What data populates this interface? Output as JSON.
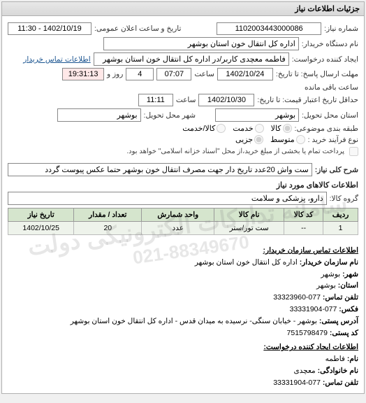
{
  "panel_title": "جزئیات اطلاعات نیاز",
  "need_number_label": "شماره نیاز:",
  "need_number": "1102003443000086",
  "announce_label": "تاریخ و ساعت اعلان عمومی:",
  "announce_value": "1402/10/19 - 11:30",
  "buyer_org_label": "نام دستگاه خریدار:",
  "buyer_org": "اداره کل انتقال خون استان بوشهر",
  "requester_label": "ایجاد کننده درخواست:",
  "requester": "فاطمه معچدی کاربر/در اداره کل انتقال خون استان بوشهر",
  "buyer_contact_link": "اطلاعات تماس خریدار",
  "deadline_label": "مهلت ارسال پاسخ: تا تاریخ:",
  "deadline_date": "1402/10/24",
  "time_label": "ساعت",
  "deadline_time": "07:07",
  "days_label": "روز و",
  "days_remaining": "4",
  "hours_remaining": "19:31:13",
  "hours_remaining_label": "ساعت باقی مانده",
  "validity_label": "حداقل تاریخ اعتبار قیمت: تا تاریخ:",
  "validity_date": "1402/10/30",
  "validity_time": "11:11",
  "province_label": "استان محل تحویل:",
  "province": "بوشهر",
  "city_label": "شهر محل تحویل:",
  "city": "بوشهر",
  "budget_label": "طبقه بندی موضوعی:",
  "radio_goods": "کالا",
  "radio_service": "خدمت",
  "radio_both": "کالا/خدمت",
  "purchase_type_label": "نوع فرآیند خرید :",
  "radio_medium": "متوسط",
  "radio_partial": "جزیی",
  "check_total": "پرداخت تمام یا بخشی از مبلغ خرید،از محل \"اسناد خزانه اسلامی\" خواهد بود.",
  "desc_label": "شرح کلی نیاز:",
  "desc_value": "ست واش 20عدد تاریخ دار جهت مصرف انتقال خون بوشهر حتما عکس پیوست گردد",
  "items_section": "اطلاعات کالاهای مورد نیاز",
  "group_label": "گروه کالا:",
  "group_value": "دارو، پزشکی و سلامت",
  "table": {
    "headers": [
      "ردیف",
      "کد کالا",
      "نام کالا",
      "واحد شمارش",
      "تعداد / مقدار",
      "تاریخ نیاز"
    ],
    "rows": [
      [
        "1",
        "--",
        "ست تور/ستر",
        "عدد",
        "20",
        "1402/10/25"
      ]
    ]
  },
  "contact": {
    "buyer_title": "اطلاعات تماس سازمان خریدار:",
    "org_label": "نام سازمان خریدار:",
    "org": "اداره کل انتقال خون استان بوشهر",
    "city_label": "شهر:",
    "city": "بوشهر",
    "province_label": "استان:",
    "province": "بوشهر",
    "phone_label": "تلفن تماس:",
    "phone": "077-33323960",
    "fax_label": "فکس:",
    "fax": "077-33331904",
    "address_label": "آدرس پستی:",
    "address": "بوشهر - خیابان سنگی- نرسیده به میدان قدس - اداره کل انتقال خون استان بوشهر",
    "postal_label": "کد پستی:",
    "postal": "7515798479",
    "requester_title": "اطلاعات ایجاد کننده درخواست:",
    "name_label": "نام:",
    "name": "فاطمه",
    "lastname_label": "نام خانوادگی:",
    "lastname": "معچدی",
    "req_phone_label": "تلفن تماس:",
    "req_phone": "077-33331904"
  },
  "watermark1": "سامانه تدارکات الکترونیکی دولت",
  "watermark2": "021-88349670"
}
